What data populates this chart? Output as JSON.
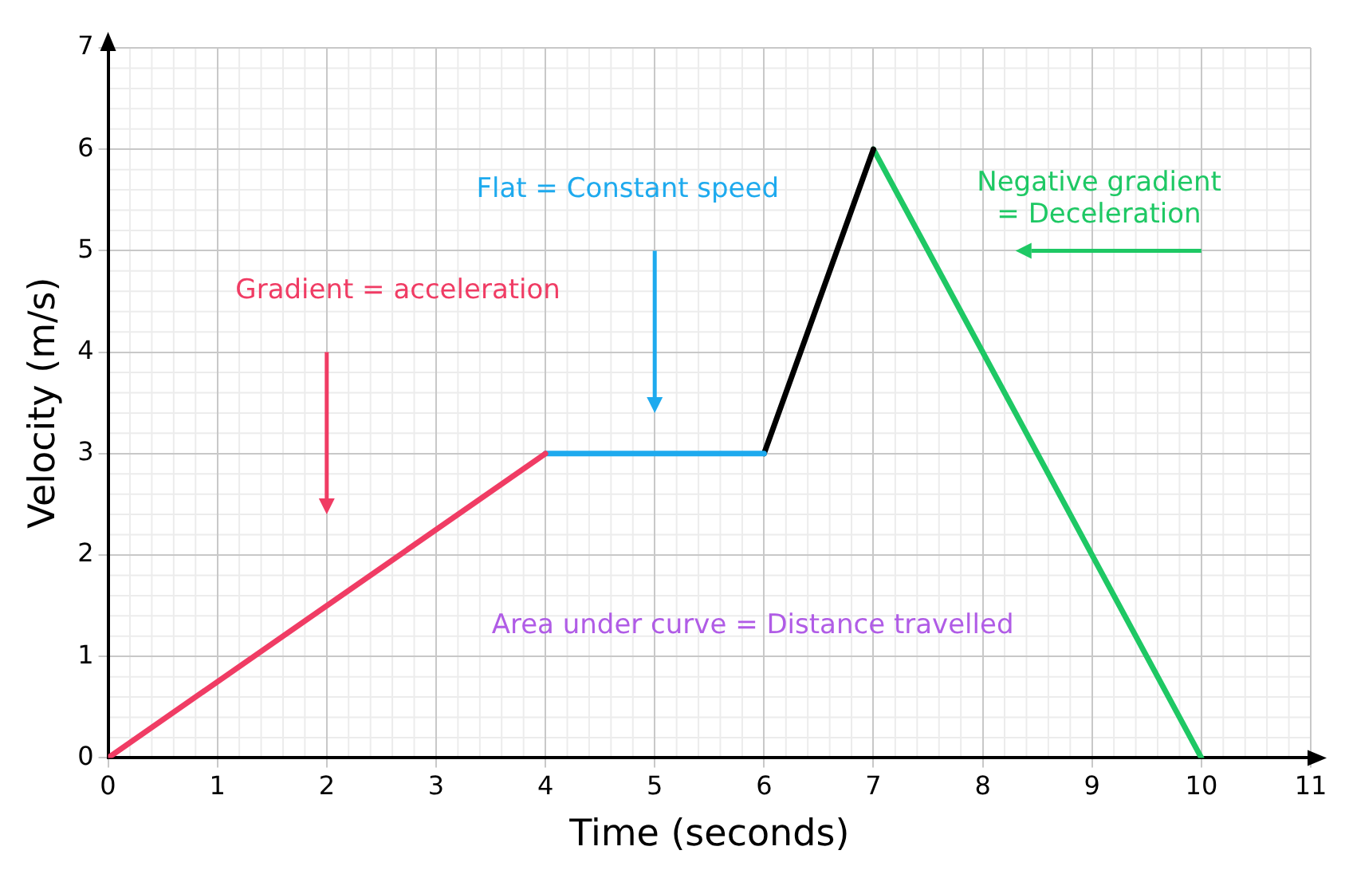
{
  "chart_data": {
    "type": "line",
    "xlabel": "Time (seconds)",
    "ylabel": "Velocity (m/s)",
    "xlim": [
      0,
      11
    ],
    "ylim": [
      0,
      7
    ],
    "xticks": [
      0,
      1,
      2,
      3,
      4,
      5,
      6,
      7,
      8,
      9,
      10,
      11
    ],
    "yticks": [
      0,
      1,
      2,
      3,
      4,
      5,
      6,
      7
    ],
    "grid": true,
    "legend": false,
    "marker": "none",
    "line_style": "solid",
    "series": [
      {
        "color": "#f03c64",
        "x": [
          0,
          4
        ],
        "values": [
          0,
          3
        ]
      },
      {
        "color": "#1eaaee",
        "x": [
          4,
          6
        ],
        "values": [
          3,
          3
        ]
      },
      {
        "color": "#000000",
        "x": [
          6,
          7
        ],
        "values": [
          3,
          6
        ]
      },
      {
        "color": "#1ec864",
        "x": [
          7,
          10
        ],
        "values": [
          6,
          0
        ]
      }
    ],
    "annotations": [
      "Gradient = acceleration",
      "Flat = Constant speed",
      "Negative gradient\n= Deceleration",
      "Area under curve = Distance travelled"
    ]
  }
}
